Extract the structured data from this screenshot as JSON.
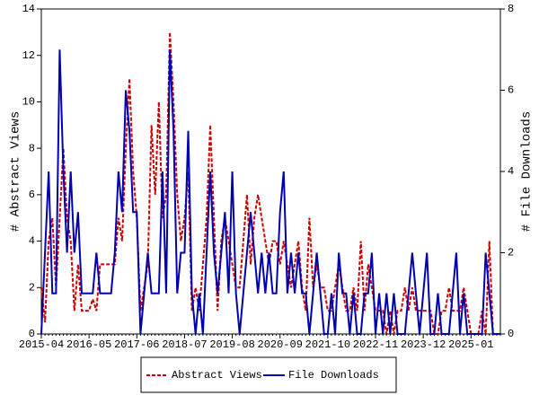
{
  "chart_data": {
    "type": "line",
    "categories": [
      "2015-04",
      null,
      null,
      null,
      null,
      null,
      null,
      null,
      null,
      null,
      null,
      null,
      null,
      "2016-05",
      null,
      null,
      null,
      null,
      null,
      null,
      null,
      null,
      null,
      null,
      null,
      null,
      "2017-06",
      null,
      null,
      null,
      null,
      null,
      null,
      null,
      null,
      null,
      null,
      null,
      null,
      "2018-07",
      null,
      null,
      null,
      null,
      null,
      null,
      null,
      null,
      null,
      null,
      null,
      null,
      "2019-08",
      null,
      null,
      null,
      null,
      null,
      null,
      null,
      null,
      null,
      null,
      null,
      null,
      "2020-09",
      null,
      null,
      null,
      null,
      null,
      null,
      null,
      null,
      null,
      null,
      null,
      null,
      "2021-10",
      null,
      null,
      null,
      null,
      null,
      null,
      null,
      null,
      null,
      null,
      null,
      null,
      "2022-11",
      null,
      null,
      null,
      null,
      null,
      null,
      null,
      null,
      null,
      null,
      null,
      null,
      "2023-12",
      null,
      null,
      null,
      null,
      null,
      null,
      null,
      null,
      null,
      null,
      null,
      null,
      "2025-01",
      null,
      null,
      null,
      null,
      null,
      null,
      null,
      null
    ],
    "ylabel": "# Abstract Views",
    "y2label": "# File Downloads",
    "ylim": [
      0,
      14
    ],
    "yticks": [
      0,
      2,
      4,
      6,
      8,
      10,
      12,
      14
    ],
    "y2lim": [
      0,
      8
    ],
    "y2ticks": [
      0,
      2,
      4,
      6,
      8
    ],
    "legend": "bottom",
    "series": [
      {
        "name": "Abstract Views",
        "color": "#cc0000",
        "dash": true,
        "values": [
          2,
          0.5,
          4,
          5,
          2,
          5,
          8,
          5,
          4,
          1,
          3,
          1,
          1,
          1,
          1.5,
          1,
          3,
          3,
          3,
          3,
          3,
          5,
          4,
          8,
          11,
          7,
          5,
          1,
          2,
          3,
          9,
          6,
          10,
          5,
          6,
          13,
          10,
          6,
          4,
          5,
          7,
          1,
          2,
          1,
          3,
          5,
          9,
          5,
          1,
          4,
          5,
          4,
          3,
          2,
          2,
          4,
          6,
          3,
          5,
          6,
          5,
          4,
          3,
          4,
          4,
          3,
          4,
          3,
          2,
          3,
          4,
          2,
          1,
          5,
          2,
          3,
          2,
          2,
          1,
          1,
          2,
          3,
          2,
          1,
          1,
          2,
          1,
          4,
          1,
          3,
          2,
          1,
          1,
          1,
          0,
          1,
          0,
          1,
          1,
          2,
          1,
          2,
          1,
          1,
          1,
          1,
          1,
          0,
          0,
          1,
          1,
          2,
          1,
          1,
          1,
          2,
          1,
          0,
          0,
          0,
          1,
          0,
          4,
          0,
          0,
          0
        ]
      },
      {
        "name": "File Downloads",
        "color": "#0000b0",
        "axis": "y2",
        "values": [
          0,
          2,
          4,
          1,
          1,
          7,
          4,
          2,
          4,
          2,
          3,
          1,
          1,
          1,
          1,
          2,
          1,
          1,
          1,
          1,
          2,
          4,
          3,
          6,
          5,
          3,
          3,
          0,
          1,
          2,
          1,
          1,
          1,
          4,
          1,
          7,
          5,
          1,
          2,
          2,
          5,
          1,
          0,
          1,
          0,
          2,
          4,
          2,
          1,
          2,
          3,
          1,
          4,
          1,
          0,
          1,
          2,
          3,
          2,
          1,
          2,
          1,
          2,
          1,
          1,
          3,
          4,
          1,
          2,
          1,
          2,
          1,
          1,
          0,
          1,
          2,
          1,
          0,
          0,
          1,
          0,
          2,
          1,
          1,
          0,
          1,
          0,
          0,
          1,
          1,
          2,
          0,
          1,
          0,
          1,
          0,
          1,
          0,
          0,
          0,
          1,
          2,
          1,
          0,
          1,
          2,
          0,
          0,
          1,
          0,
          0,
          0,
          1,
          2,
          0,
          1,
          0,
          0,
          0,
          0,
          0,
          2,
          1,
          0,
          0,
          0
        ]
      }
    ]
  }
}
